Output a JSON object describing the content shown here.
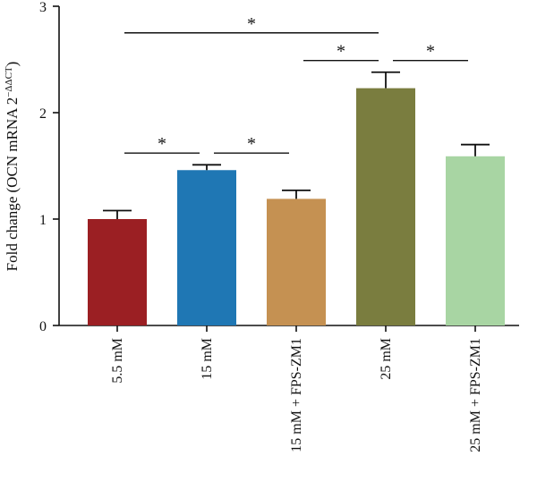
{
  "chart_data": {
    "type": "bar",
    "categories": [
      "5.5 mM",
      "15 mM",
      "15 mM + FPS-ZM1",
      "25 mM",
      "25 mM + FPS-ZM1"
    ],
    "values": [
      1.0,
      1.46,
      1.19,
      2.23,
      1.59
    ],
    "errors": [
      0.08,
      0.05,
      0.08,
      0.15,
      0.11
    ],
    "colors": [
      "#9b1f23",
      "#1f77b4",
      "#c59152",
      "#7a7d3f",
      "#a8d5a3"
    ],
    "ylabel": {
      "main": "Fold change (OCN mRNA 2",
      "superscript": "−ΔΔCT",
      "close": ")"
    },
    "ylim": [
      0,
      3
    ],
    "yticks": [
      0,
      1,
      2,
      3
    ],
    "grid": false,
    "significance": [
      {
        "from": 0,
        "to": 1,
        "y": 1.62,
        "label": "*"
      },
      {
        "from": 1,
        "to": 2,
        "y": 1.62,
        "label": "*"
      },
      {
        "from": 2,
        "to": 3,
        "y": 2.49,
        "label": "*"
      },
      {
        "from": 3,
        "to": 4,
        "y": 2.49,
        "label": "*"
      },
      {
        "from": 0,
        "to": 3,
        "y": 2.75,
        "label": "*"
      }
    ]
  }
}
